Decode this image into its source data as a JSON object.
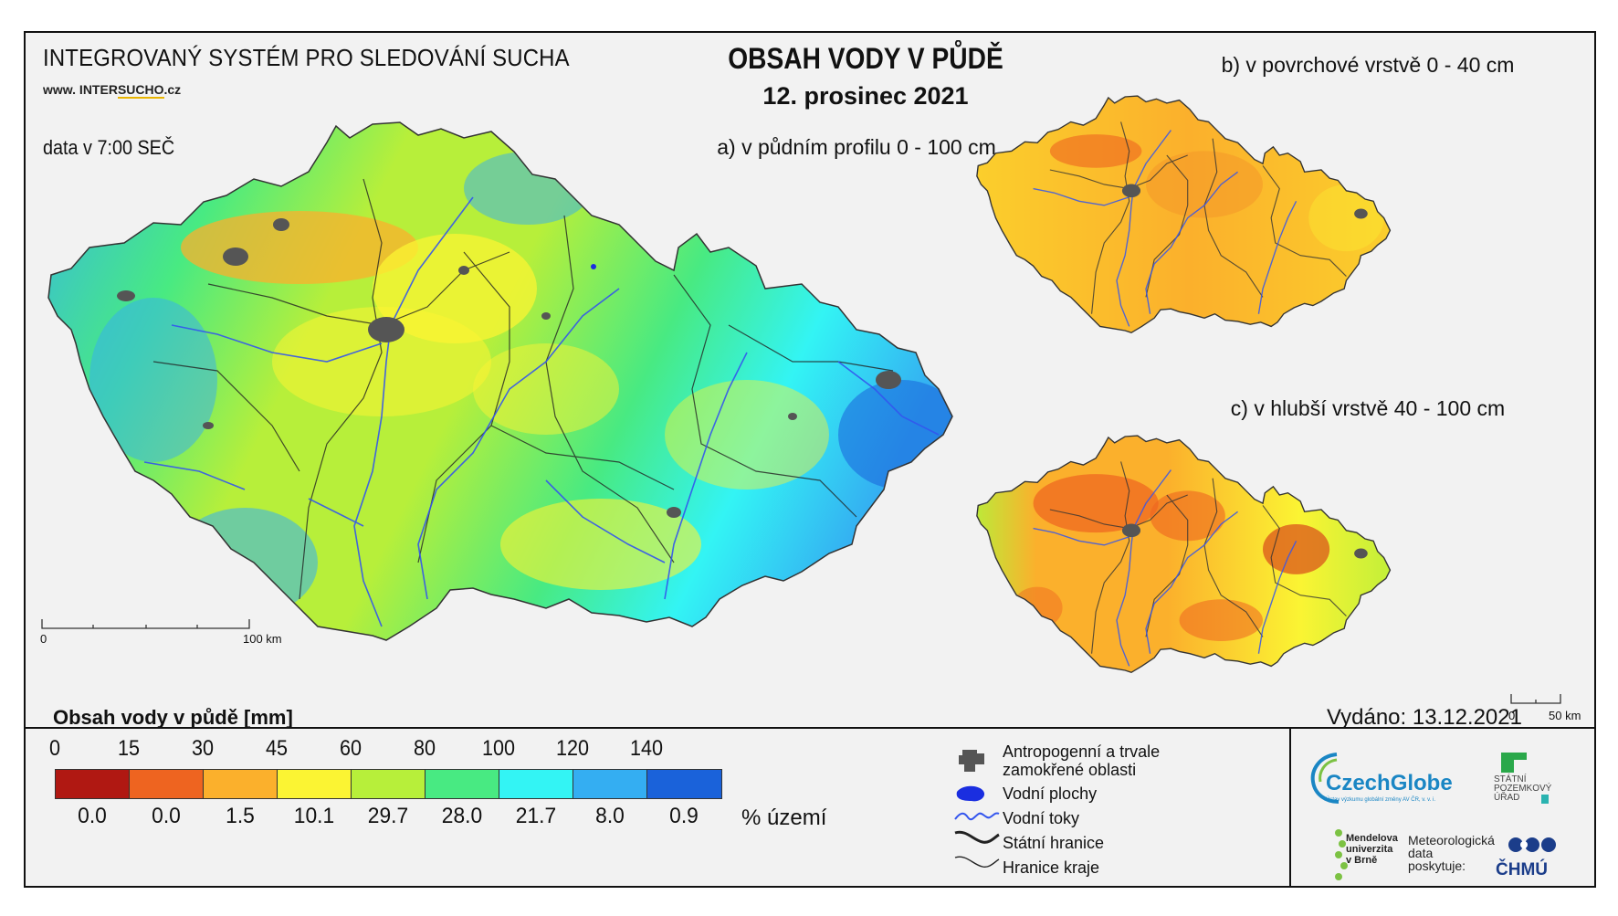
{
  "header": {
    "system_title": "INTEGROVANÝ SYSTÉM PRO SLEDOVÁNÍ SUCHA",
    "website_prefix": "www. INTER",
    "website_highlight": "SUCHO",
    "website_suffix": ".cz",
    "data_time": "data v 7:00 SEČ",
    "main_title": "OBSAH VODY V PŮDĚ",
    "date": "12. prosinec 2021"
  },
  "maps": {
    "a_label": "a) v půdním profilu 0 - 100 cm",
    "b_label": "b) v povrchové vrstvě 0 - 40 cm",
    "c_label": "c) v hlubší vrstvě 40 - 100 cm",
    "scale_main_0": "0",
    "scale_main_end": "100 km",
    "scale_small_0": "0",
    "scale_small_end": "50 km"
  },
  "legend": {
    "title": "Obsah vody v půdě  [mm]",
    "ticks": [
      "0",
      "15",
      "30",
      "45",
      "60",
      "80",
      "100",
      "120",
      "140"
    ],
    "colors": [
      "#b01812",
      "#ee6420",
      "#fbb02c",
      "#fbf433",
      "#b7ef3a",
      "#48ea82",
      "#33f4f4",
      "#34aef2",
      "#1a62da"
    ],
    "percent_values": [
      "0.0",
      "0.0",
      "1.5",
      "10.1",
      "29.7",
      "28.0",
      "21.7",
      "8.0",
      "0.9"
    ],
    "percent_label": "% území"
  },
  "symbol_legend": {
    "items": [
      {
        "label_1": "Antropogenní a trvale",
        "label_2": "zamokřené oblasti",
        "icon": "urban-area-icon"
      },
      {
        "label_1": "Vodní plochy",
        "icon": "water-body-icon"
      },
      {
        "label_1": "Vodní toky",
        "icon": "river-icon"
      },
      {
        "label_1": "Státní hranice",
        "icon": "state-border-icon"
      },
      {
        "label_1": "Hranice kraje",
        "icon": "region-border-icon"
      }
    ]
  },
  "footer": {
    "issued": "Vydáno: 13.12.2021",
    "czechglobe": "CzechGlobe",
    "czechglobe_sub": "Ústav výzkumu globální změny AV ČR, v. v. i.",
    "spu_1": "STÁTNÍ",
    "spu_2": "POZEMKOVÝ",
    "spu_3": "ÚŘAD",
    "mendel_1": "Mendelova",
    "mendel_2": "univerzita",
    "mendel_3": "v Brně",
    "meteo_1": "Meteorologická",
    "meteo_2": "data",
    "meteo_3": "poskytuje:",
    "chmu": "ČHMÚ"
  }
}
